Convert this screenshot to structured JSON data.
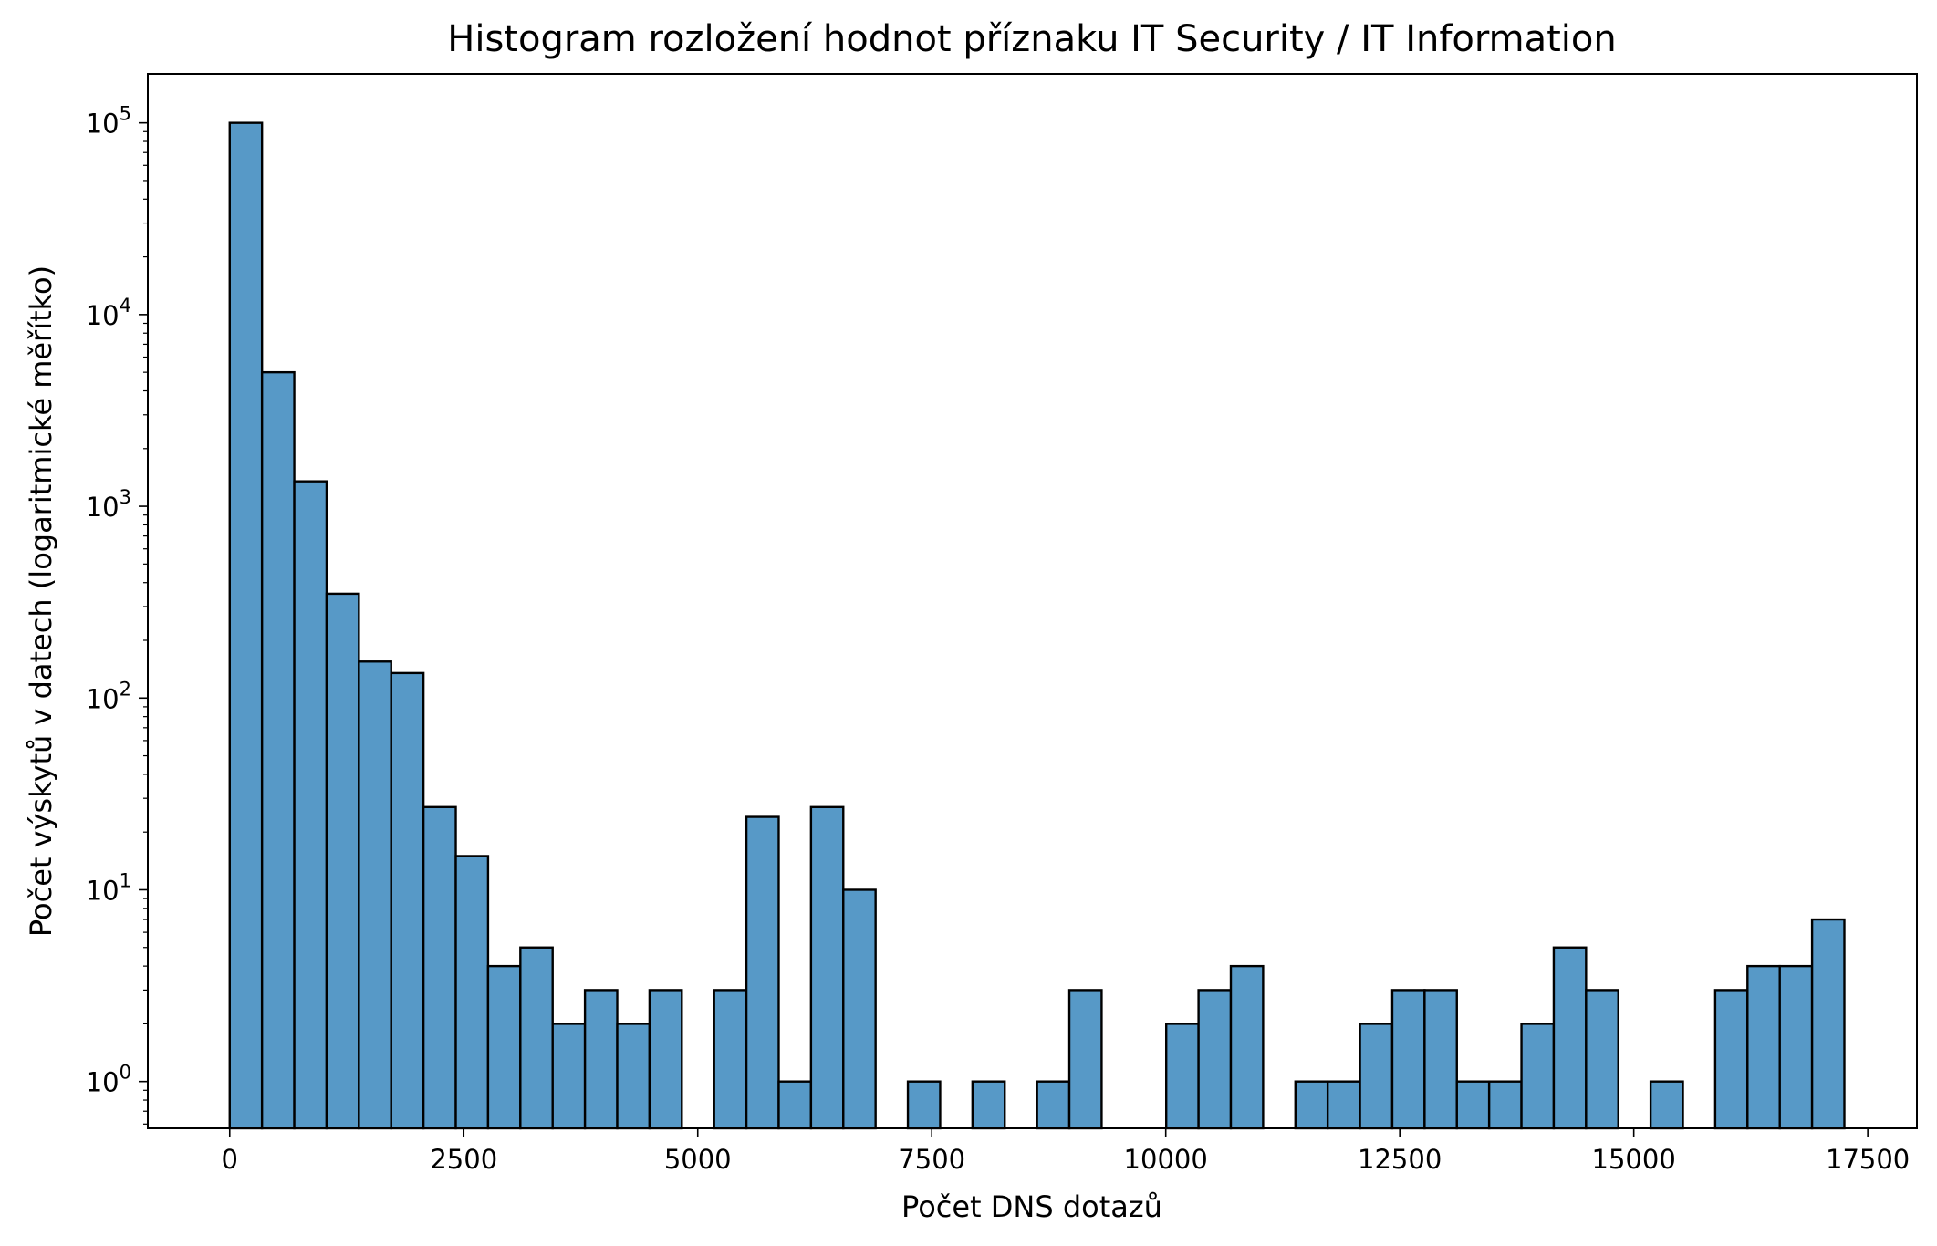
{
  "chart_data": {
    "type": "bar",
    "title": "Histogram rozložení hodnot příznaku IT Security / IT Information",
    "xlabel": "Počet DNS dotazů",
    "ylabel": "Počet výskytů v datech (logaritmické měřítko)",
    "y_scale": "log",
    "bar_color": "#5799c7",
    "edge_color": "#000000",
    "xlim": [
      -875,
      18025
    ],
    "ylim": [
      0.57,
      180000
    ],
    "xticks": [
      0,
      2500,
      5000,
      7500,
      10000,
      12500,
      15000,
      17500
    ],
    "xtick_labels": [
      "0",
      "2500",
      "5000",
      "7500",
      "10000",
      "12500",
      "15000",
      "17500"
    ],
    "yticks": [
      1,
      10,
      100,
      1000,
      10000,
      100000
    ],
    "ytick_labels": [
      {
        "base": "10",
        "exp": "0"
      },
      {
        "base": "10",
        "exp": "1"
      },
      {
        "base": "10",
        "exp": "2"
      },
      {
        "base": "10",
        "exp": "3"
      },
      {
        "base": "10",
        "exp": "4"
      },
      {
        "base": "10",
        "exp": "5"
      }
    ],
    "bin_start": 0,
    "bin_width": 345,
    "counts": [
      100000,
      5000,
      1350,
      350,
      155,
      135,
      27,
      15,
      4,
      5,
      2,
      3,
      2,
      3,
      0,
      3,
      24,
      1,
      27,
      10,
      0,
      1,
      0,
      1,
      0,
      1,
      3,
      0,
      0,
      2,
      3,
      4,
      0,
      1,
      1,
      2,
      3,
      3,
      1,
      1,
      2,
      5,
      3,
      0,
      1,
      0,
      3,
      4,
      4,
      7
    ]
  }
}
